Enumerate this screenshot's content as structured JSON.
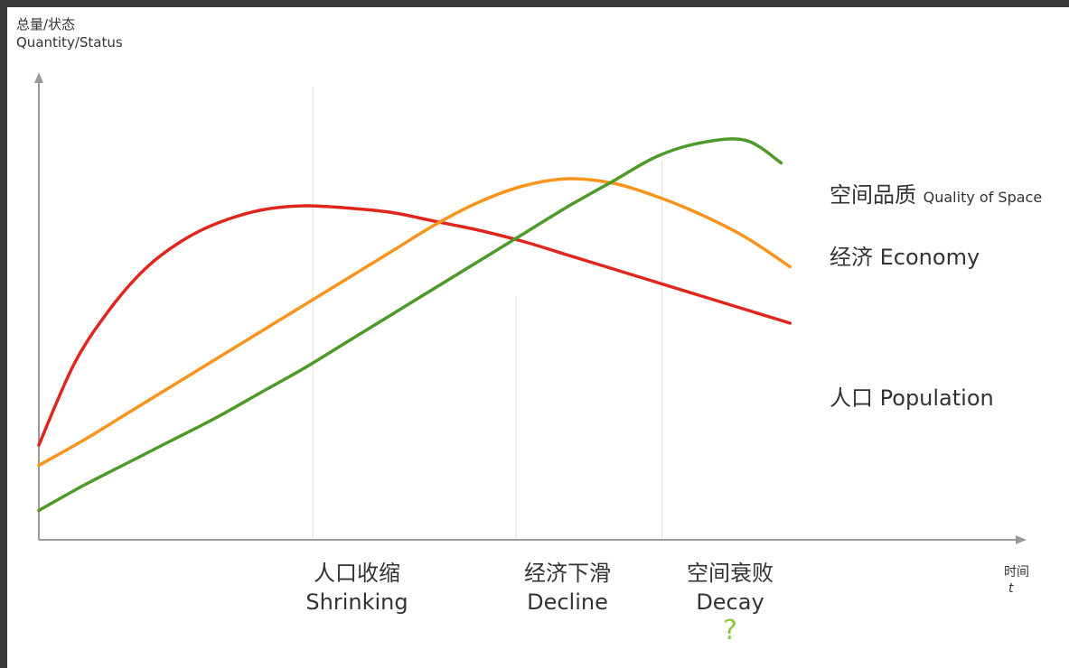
{
  "chart_data": {
    "type": "line",
    "ylabel_zh": "总量/状态",
    "ylabel_en": "Quantity/Status",
    "xlabel_zh": "时间",
    "xlabel_en": "t",
    "xlim": [
      0,
      100
    ],
    "ylim": [
      0,
      100
    ],
    "grid": false,
    "legend_placement": "right",
    "series": [
      {
        "name_zh": "人口",
        "name_en": "Population",
        "color": "#e0261c",
        "x": [
          0,
          4,
          8,
          12,
          16,
          20,
          25,
          30,
          35,
          40,
          45,
          50,
          55,
          60,
          65,
          70,
          75,
          80,
          85
        ],
        "y": [
          21,
          39,
          51,
          60,
          66,
          70,
          73,
          74,
          73.5,
          72.5,
          70.5,
          68.5,
          66,
          63,
          60,
          57,
          54,
          51,
          48
        ]
      },
      {
        "name_zh": "经济",
        "name_en": "Economy",
        "color": "#f7941d",
        "x": [
          0,
          5,
          10,
          15,
          20,
          25,
          30,
          35,
          40,
          45,
          50,
          55,
          60,
          65,
          70,
          75,
          80,
          85
        ],
        "y": [
          16.5,
          22,
          28,
          34,
          40,
          46,
          52,
          58,
          64,
          70,
          75,
          78.5,
          80,
          79,
          76,
          72,
          67,
          60.5
        ]
      },
      {
        "name_zh": "空间品质",
        "name_en": "Quality of Space",
        "color": "#4d9a2a",
        "x": [
          0,
          5,
          10,
          15,
          20,
          25,
          30,
          35,
          40,
          45,
          50,
          55,
          60,
          65,
          70,
          75,
          80,
          84
        ],
        "y": [
          6.5,
          12,
          17,
          22,
          27,
          32.5,
          38,
          44,
          50,
          56,
          62,
          68,
          74,
          79.5,
          85,
          88,
          88.5,
          83.5
        ]
      }
    ],
    "stages": [
      {
        "zh": "人口收缩",
        "en": "Shrinking",
        "x": 31
      },
      {
        "zh": "经济下滑",
        "en": "Decline",
        "x": 54
      },
      {
        "zh": "空间衰败",
        "en": "Decay",
        "x": 70.5,
        "mark": "?"
      }
    ]
  }
}
